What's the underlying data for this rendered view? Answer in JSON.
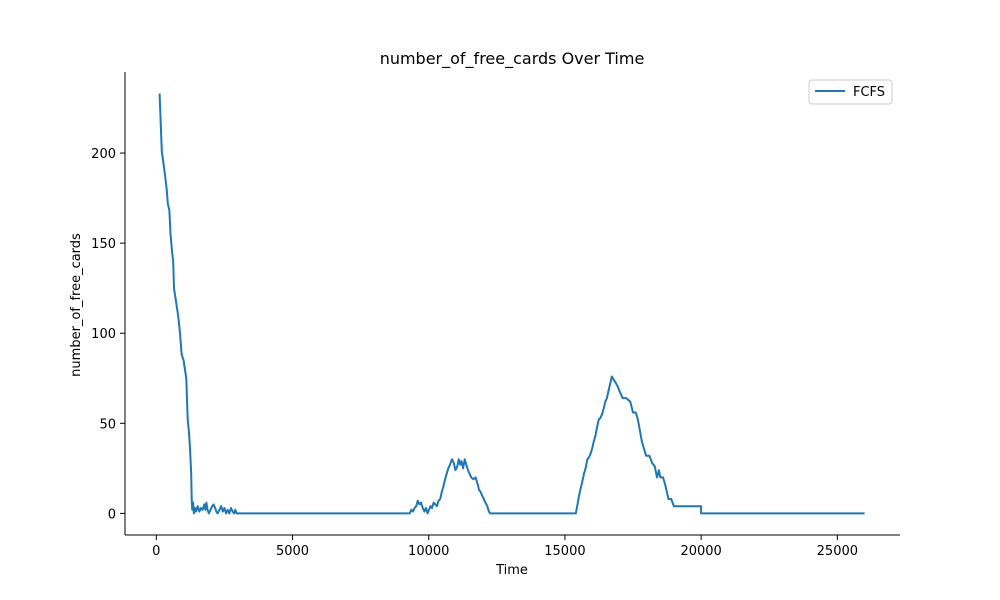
{
  "chart_data": {
    "type": "line",
    "title": "number_of_free_cards Over Time",
    "xlabel": "Time",
    "ylabel": "number_of_free_cards",
    "xlim": [
      -1150,
      27300
    ],
    "ylim": [
      -12,
      245
    ],
    "xticks": [
      0,
      5000,
      10000,
      15000,
      20000,
      25000
    ],
    "yticks": [
      0,
      50,
      100,
      150,
      200
    ],
    "grid": false,
    "legend_position": "top-right",
    "series": [
      {
        "name": "FCFS",
        "color": "#1f77b4",
        "points": [
          [
            120,
            233
          ],
          [
            200,
            201
          ],
          [
            300,
            190
          ],
          [
            380,
            180
          ],
          [
            420,
            172
          ],
          [
            480,
            168
          ],
          [
            520,
            155
          ],
          [
            580,
            145
          ],
          [
            620,
            140
          ],
          [
            650,
            125
          ],
          [
            720,
            118
          ],
          [
            800,
            110
          ],
          [
            870,
            100
          ],
          [
            930,
            88
          ],
          [
            1000,
            85
          ],
          [
            1050,
            80
          ],
          [
            1100,
            75
          ],
          [
            1130,
            62
          ],
          [
            1150,
            52
          ],
          [
            1200,
            45
          ],
          [
            1240,
            35
          ],
          [
            1280,
            22
          ],
          [
            1300,
            8
          ],
          [
            1320,
            2
          ],
          [
            1350,
            6
          ],
          [
            1380,
            0
          ],
          [
            1420,
            3
          ],
          [
            1460,
            1
          ],
          [
            1520,
            4
          ],
          [
            1580,
            1
          ],
          [
            1640,
            3
          ],
          [
            1700,
            2
          ],
          [
            1760,
            5
          ],
          [
            1800,
            2
          ],
          [
            1840,
            6
          ],
          [
            1880,
            2
          ],
          [
            1930,
            0
          ],
          [
            1990,
            2
          ],
          [
            2050,
            4
          ],
          [
            2100,
            5
          ],
          [
            2160,
            3
          ],
          [
            2200,
            1
          ],
          [
            2250,
            0
          ],
          [
            2320,
            2
          ],
          [
            2380,
            4
          ],
          [
            2440,
            1
          ],
          [
            2500,
            3
          ],
          [
            2560,
            0
          ],
          [
            2620,
            2
          ],
          [
            2680,
            0
          ],
          [
            2740,
            3
          ],
          [
            2800,
            1
          ],
          [
            2860,
            0
          ],
          [
            2900,
            2
          ],
          [
            2950,
            0
          ],
          [
            9300,
            0
          ],
          [
            9360,
            2
          ],
          [
            9420,
            1
          ],
          [
            9480,
            3
          ],
          [
            9540,
            4
          ],
          [
            9600,
            7
          ],
          [
            9660,
            5
          ],
          [
            9720,
            6
          ],
          [
            9780,
            3
          ],
          [
            9840,
            1
          ],
          [
            9900,
            3
          ],
          [
            9960,
            0
          ],
          [
            10010,
            2
          ],
          [
            10060,
            4
          ],
          [
            10120,
            3
          ],
          [
            10180,
            6
          ],
          [
            10240,
            5
          ],
          [
            10300,
            4
          ],
          [
            10360,
            7
          ],
          [
            10420,
            8
          ],
          [
            10480,
            12
          ],
          [
            10540,
            15
          ],
          [
            10600,
            19
          ],
          [
            10660,
            22
          ],
          [
            10720,
            25
          ],
          [
            10780,
            27
          ],
          [
            10850,
            30
          ],
          [
            10920,
            28
          ],
          [
            10980,
            24
          ],
          [
            11050,
            26
          ],
          [
            11100,
            30
          ],
          [
            11160,
            27
          ],
          [
            11200,
            29
          ],
          [
            11260,
            25
          ],
          [
            11320,
            30
          ],
          [
            11380,
            27
          ],
          [
            11440,
            24
          ],
          [
            11500,
            22
          ],
          [
            11560,
            20
          ],
          [
            11640,
            19
          ],
          [
            11720,
            20
          ],
          [
            11800,
            16
          ],
          [
            11850,
            13
          ],
          [
            11900,
            12
          ],
          [
            11960,
            10
          ],
          [
            12020,
            8
          ],
          [
            12080,
            6
          ],
          [
            12150,
            4
          ],
          [
            12210,
            1
          ],
          [
            12260,
            0
          ],
          [
            15400,
            0
          ],
          [
            15460,
            5
          ],
          [
            15520,
            10
          ],
          [
            15580,
            14
          ],
          [
            15640,
            18
          ],
          [
            15700,
            22
          ],
          [
            15760,
            25
          ],
          [
            15820,
            30
          ],
          [
            15880,
            31
          ],
          [
            15940,
            33
          ],
          [
            16000,
            36
          ],
          [
            16060,
            40
          ],
          [
            16120,
            43
          ],
          [
            16180,
            48
          ],
          [
            16240,
            52
          ],
          [
            16300,
            53
          ],
          [
            16360,
            55
          ],
          [
            16420,
            58
          ],
          [
            16480,
            62
          ],
          [
            16540,
            64
          ],
          [
            16600,
            68
          ],
          [
            16660,
            72
          ],
          [
            16720,
            76
          ],
          [
            16800,
            74
          ],
          [
            16880,
            72
          ],
          [
            16950,
            70
          ],
          [
            17000,
            68
          ],
          [
            17120,
            64
          ],
          [
            17250,
            64
          ],
          [
            17400,
            62
          ],
          [
            17500,
            56
          ],
          [
            17600,
            56
          ],
          [
            17680,
            52
          ],
          [
            17750,
            46
          ],
          [
            17820,
            40
          ],
          [
            17900,
            36
          ],
          [
            17980,
            32
          ],
          [
            18100,
            32
          ],
          [
            18200,
            28
          ],
          [
            18300,
            26
          ],
          [
            18380,
            20
          ],
          [
            18450,
            24
          ],
          [
            18500,
            20
          ],
          [
            18600,
            20
          ],
          [
            18680,
            16
          ],
          [
            18740,
            12
          ],
          [
            18800,
            8
          ],
          [
            18900,
            8
          ],
          [
            19000,
            4
          ],
          [
            19500,
            4
          ],
          [
            20000,
            4
          ],
          [
            20000,
            0
          ],
          [
            26000,
            0
          ]
        ]
      }
    ]
  }
}
